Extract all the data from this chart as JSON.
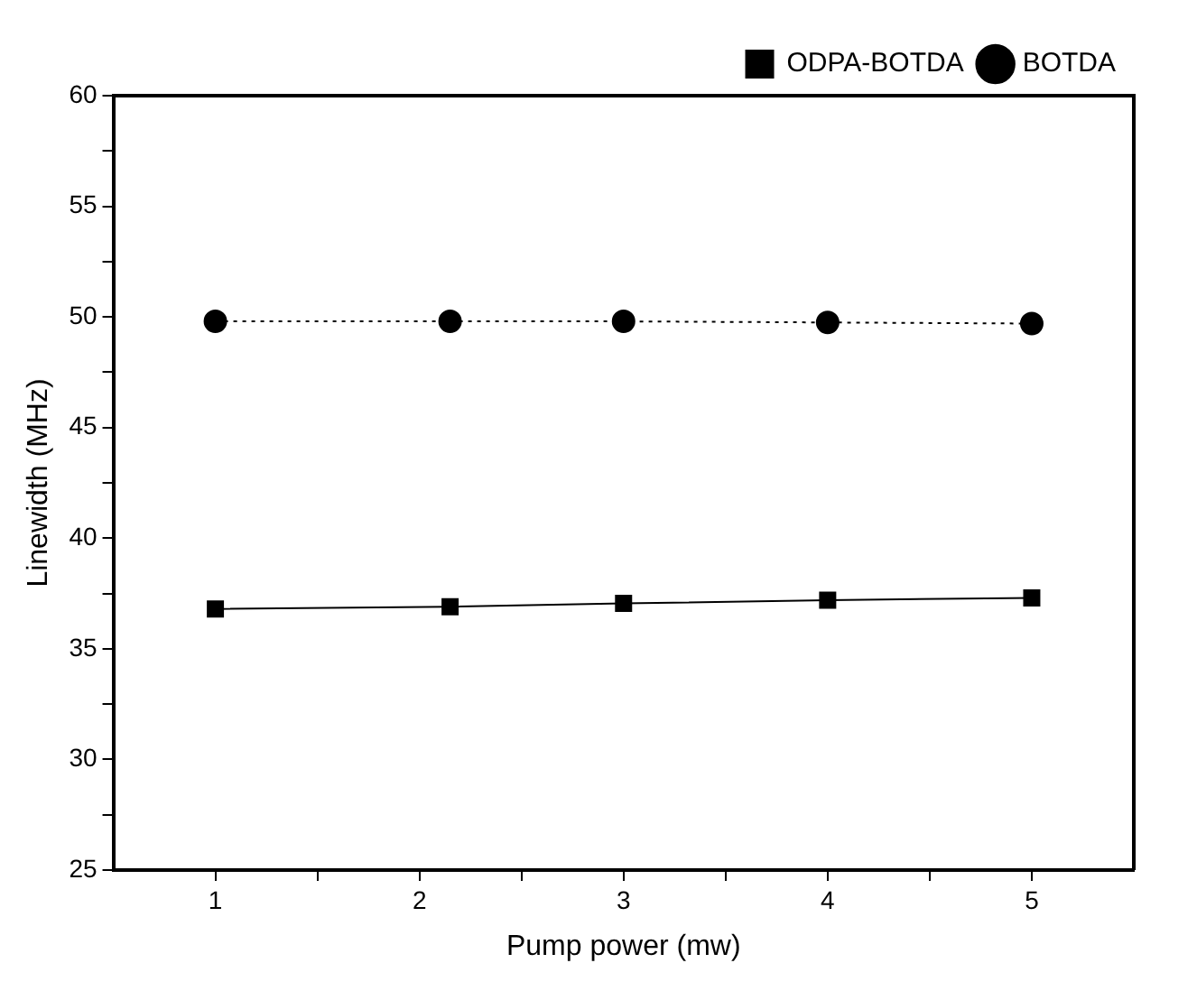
{
  "chart_data": {
    "type": "line",
    "xlabel": "Pump power (mw)",
    "ylabel": "Linewidth (MHz)",
    "x": [
      1,
      2.15,
      3,
      4,
      5
    ],
    "series": [
      {
        "name": "ODPA-BOTDA",
        "color": "#000000",
        "values": [
          36.8,
          36.9,
          37.05,
          37.2,
          37.3
        ],
        "marker": "square",
        "line_style": "solid"
      },
      {
        "name": "BOTDA",
        "color": "#000000",
        "values": [
          49.8,
          49.8,
          49.8,
          49.75,
          49.7
        ],
        "marker": "circle",
        "line_style": "dotted"
      }
    ],
    "xlim": [
      0.5,
      5.5
    ],
    "xticks": [
      1,
      {
        "value": 1.5,
        "label": null
      },
      2,
      {
        "value": 2.5,
        "label": null
      },
      3,
      {
        "value": 3.5,
        "label": null
      },
      4,
      {
        "value": 4.5,
        "label": null
      },
      5
    ],
    "ylim": [
      25,
      60
    ],
    "yticks": [
      25,
      {
        "value": 27.5,
        "label": null
      },
      30,
      {
        "value": 32.5,
        "label": null
      },
      35,
      {
        "value": 37.5,
        "label": null
      },
      40,
      {
        "value": 42.5,
        "label": null
      },
      45,
      {
        "value": 47.5,
        "label": null
      },
      50,
      {
        "value": 52.5,
        "label": null
      },
      55,
      {
        "value": 57.5,
        "label": null
      },
      60
    ],
    "grid": false,
    "legend": "top right"
  }
}
